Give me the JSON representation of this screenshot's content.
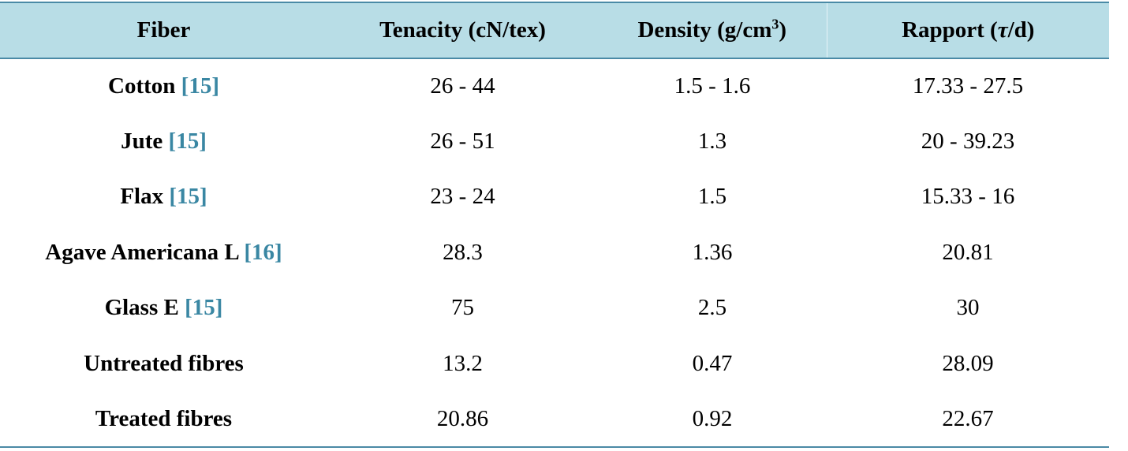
{
  "table": {
    "headers": {
      "fiber": "Fiber",
      "tenacity": "Tenacity (cN/tex)",
      "density_prefix": "Density (g/cm",
      "density_sup": "3",
      "density_suffix": ")",
      "rapport_prefix": "Rapport (",
      "rapport_symbol": "τ",
      "rapport_suffix": "/d)"
    },
    "rows": [
      {
        "fiber": "Cotton",
        "ref": "[15]",
        "tenacity": "26 - 44",
        "density": "1.5 - 1.6",
        "rapport": "17.33 - 27.5"
      },
      {
        "fiber": "Jute",
        "ref": "[15]",
        "tenacity": "26 - 51",
        "density": "1.3",
        "rapport": "20 - 39.23"
      },
      {
        "fiber": "Flax",
        "ref": "[15]",
        "tenacity": "23 - 24",
        "density": "1.5",
        "rapport": "15.33 - 16"
      },
      {
        "fiber": "Agave Americana L",
        "ref": "[16]",
        "tenacity": "28.3",
        "density": "1.36",
        "rapport": "20.81"
      },
      {
        "fiber": "Glass E",
        "ref": "[15]",
        "tenacity": "75",
        "density": "2.5",
        "rapport": "30"
      },
      {
        "fiber": "Untreated fibres",
        "ref": "",
        "tenacity": "13.2",
        "density": "0.47",
        "rapport": "28.09"
      },
      {
        "fiber": "Treated fibres",
        "ref": "",
        "tenacity": "20.86",
        "density": "0.92",
        "rapport": "22.67"
      }
    ]
  },
  "colors": {
    "header_bg": "#b8dde6",
    "rule": "#4a8aa6",
    "reference_link": "#3a87a3"
  }
}
